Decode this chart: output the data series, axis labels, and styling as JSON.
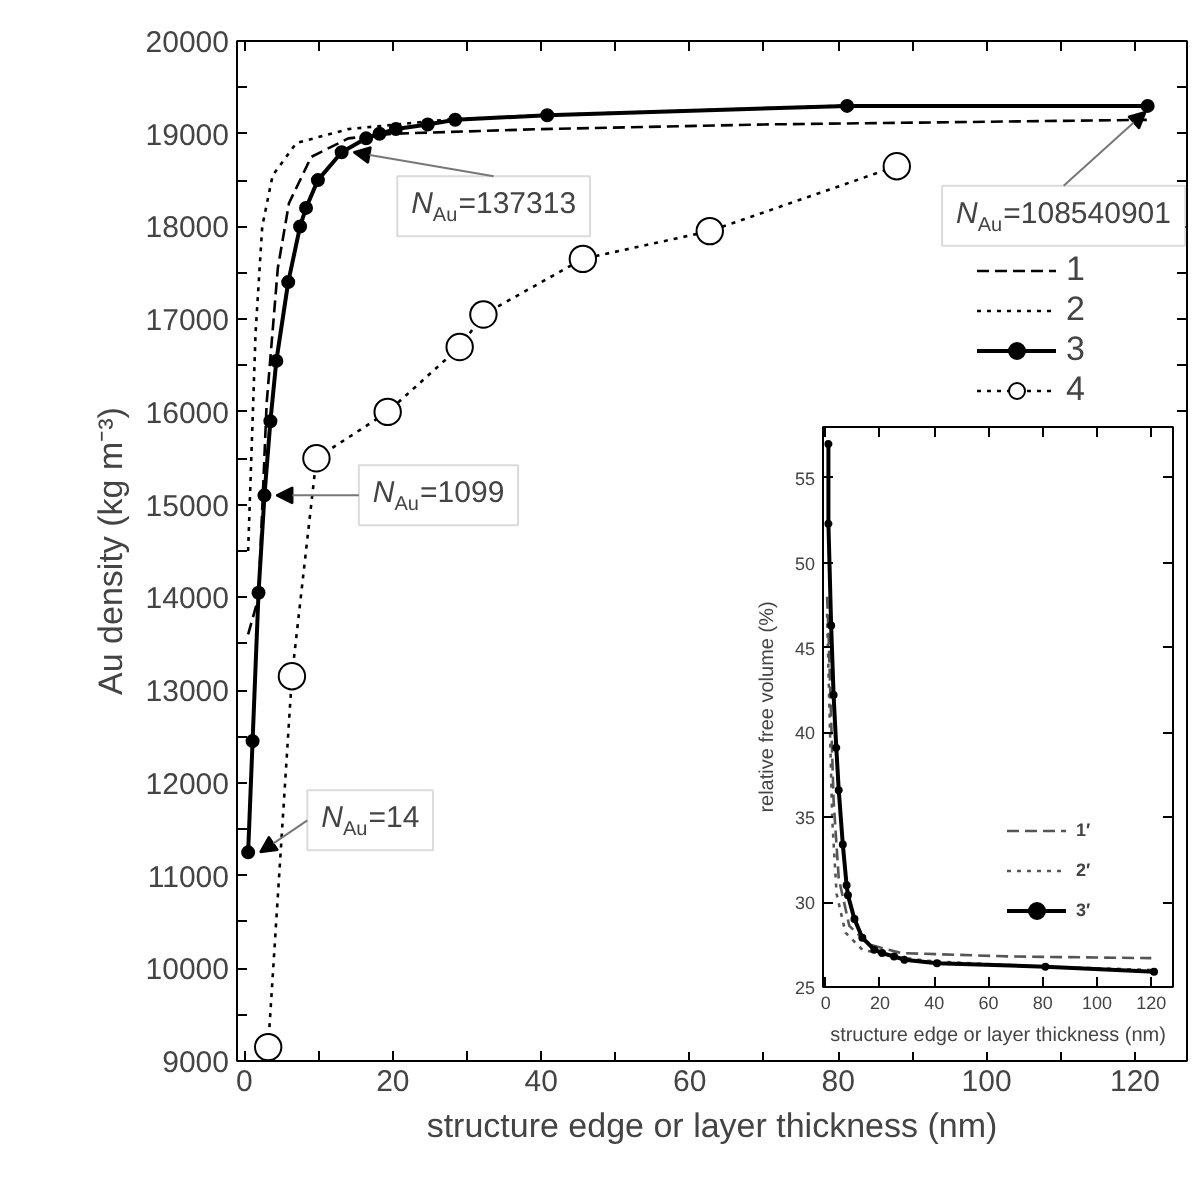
{
  "chart_data": [
    {
      "type": "line",
      "xlabel": "structure edge or layer thickness (nm)",
      "ylabel": "Au density (kg m⁻³)",
      "xlim": [
        -1,
        127
      ],
      "ylim": [
        9000,
        20000
      ],
      "xticks": [
        0,
        {
          "value": 10,
          "label": null
        },
        20,
        {
          "value": 30,
          "label": null
        },
        40,
        {
          "value": 50,
          "label": null
        },
        60,
        {
          "value": 70,
          "label": null
        },
        80,
        {
          "value": 90,
          "label": null
        },
        100,
        {
          "value": 110,
          "label": null
        },
        120
      ],
      "yticks": [
        9000,
        {
          "value": 9500,
          "label": null
        },
        10000,
        {
          "value": 10500,
          "label": null
        },
        11000,
        {
          "value": 11500,
          "label": null
        },
        12000,
        {
          "value": 12500,
          "label": null
        },
        13000,
        {
          "value": 13500,
          "label": null
        },
        14000,
        {
          "value": 14500,
          "label": null
        },
        15000,
        {
          "value": 15500,
          "label": null
        },
        16000,
        {
          "value": 16500,
          "label": null
        },
        17000,
        {
          "value": 17500,
          "label": null
        },
        18000,
        {
          "value": 18500,
          "label": null
        },
        19000,
        {
          "value": 19500,
          "label": null
        },
        20000
      ],
      "grid": false,
      "legend": "right",
      "series": [
        {
          "name": "1",
          "color": "#000000",
          "line_style": "dashed",
          "marker": "none",
          "x": [
            0.5,
            1.9,
            3.0,
            4.5,
            6.0,
            9.0,
            14.0,
            20.0,
            40.0,
            70.0,
            121.7
          ],
          "values": [
            13600,
            14000,
            16100,
            17550,
            18250,
            18750,
            18950,
            19000,
            19050,
            19100,
            19150
          ]
        },
        {
          "name": "2",
          "color": "#000000",
          "line_style": "dotted",
          "marker": "none",
          "x": [
            0.5,
            1.5,
            2.4,
            3.8,
            7.0,
            14.0,
            27.0,
            40.0,
            80.0,
            121.7
          ],
          "values": [
            14500,
            16850,
            18000,
            18550,
            18900,
            19050,
            19150,
            19200,
            19300,
            19300
          ]
        },
        {
          "name": "3",
          "color": "#000000",
          "line_style": "solid",
          "marker": "circle",
          "x": [
            0.5,
            1.1,
            1.9,
            2.7,
            3.5,
            4.3,
            5.9,
            7.5,
            8.3,
            9.9,
            13.1,
            16.4,
            18.2,
            20.4,
            24.7,
            28.4,
            40.8,
            81.2,
            121.7
          ],
          "values": [
            11250,
            12450,
            14050,
            15100,
            15900,
            16550,
            17400,
            18000,
            18200,
            18500,
            18800,
            18950,
            19000,
            19050,
            19100,
            19150,
            19200,
            19300,
            19300
          ]
        },
        {
          "name": "4",
          "color": "#000000",
          "line_style": "dotted",
          "marker": "open_circle",
          "x": [
            3.2,
            6.4,
            9.7,
            19.3,
            29.0,
            32.2,
            45.6,
            62.7,
            87.9
          ],
          "values": [
            9150,
            13150,
            15500,
            16000,
            16700,
            17050,
            17650,
            17950,
            18650
          ]
        }
      ],
      "annotations": [
        {
          "text": "N$_{Au}$=137313",
          "x": 13.1,
          "y": 18800
        },
        {
          "text": "N$_{Au}$=1099",
          "x": 2.7,
          "y": 15100
        },
        {
          "text": "N$_{Au}$=14",
          "x": 0.5,
          "y": 11250
        },
        {
          "text": "N$_{Au}$=108540901",
          "x": 121.7,
          "y": 19150
        }
      ]
    },
    {
      "type": "line",
      "xlabel": "structure edge or layer thickness (nm)",
      "ylabel": "relative free volume (%)",
      "xlim": [
        -1,
        128
      ],
      "ylim": [
        25,
        58
      ],
      "xticks": [
        0,
        20,
        40,
        60,
        80,
        100,
        120
      ],
      "yticks": [
        25,
        30,
        35,
        40,
        45,
        50,
        55
      ],
      "grid": false,
      "legend": "bottom right",
      "series": [
        {
          "name": "1′",
          "color": "#555555",
          "line_style": "dashed",
          "marker": "none",
          "x": [
            0.5,
            1.0,
            2.9,
            4.8,
            8.7,
            16.0,
            28.0,
            68.0,
            120.0
          ],
          "values": [
            48.0,
            46.0,
            36.0,
            31.4,
            28.6,
            27.5,
            27.0,
            26.8,
            26.7
          ]
        },
        {
          "name": "2′",
          "color": "#555555",
          "line_style": "dotted",
          "marker": "none",
          "x": [
            0.5,
            2.4,
            4.0,
            7.3,
            13.5,
            25.0,
            40.0,
            80.0,
            121.0
          ],
          "values": [
            47.0,
            34.9,
            30.5,
            28.2,
            27.2,
            26.8,
            26.5,
            26.2,
            26.0
          ]
        },
        {
          "name": "3′",
          "color": "#000000",
          "line_style": "solid",
          "marker": "circle",
          "x": [
            1.0,
            1.0,
            2.0,
            2.9,
            3.9,
            4.8,
            6.3,
            7.7,
            8.2,
            10.6,
            13.5,
            17.9,
            20.8,
            25.2,
            29.0,
            41.0,
            81.0,
            121.0
          ],
          "values": [
            57.0,
            52.3,
            46.3,
            42.2,
            39.1,
            36.6,
            33.4,
            31.0,
            30.4,
            29.0,
            27.9,
            27.2,
            27.0,
            26.8,
            26.6,
            26.4,
            26.2,
            25.9
          ]
        }
      ]
    }
  ]
}
